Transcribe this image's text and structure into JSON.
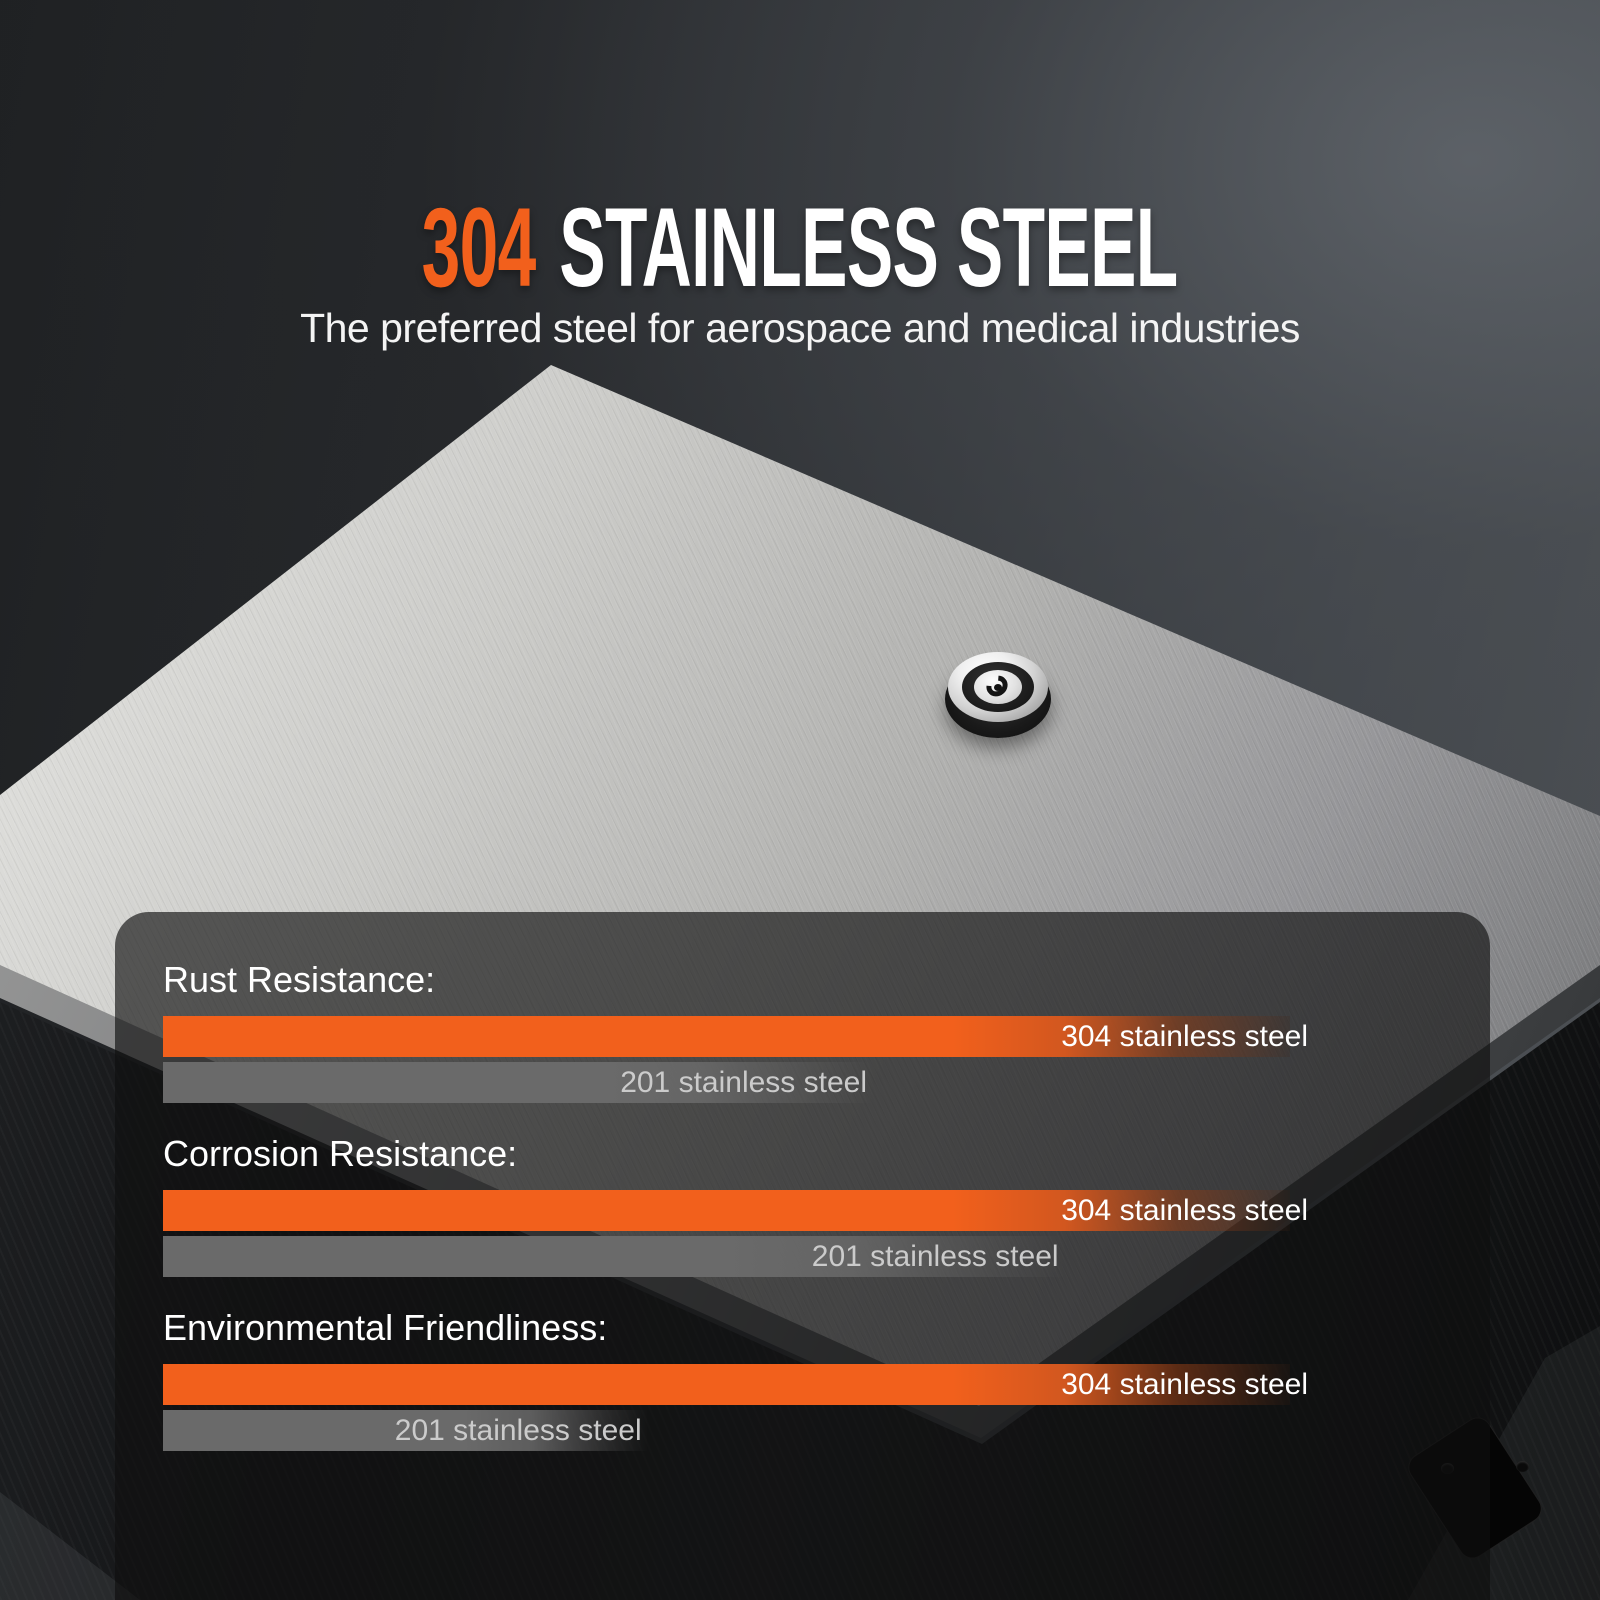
{
  "title": {
    "accent": "304",
    "main": "STAINLESS STEEL"
  },
  "subtitle": "The preferred steel for aerospace and medical industries",
  "sections": [
    {
      "label": "Rust Resistance:",
      "bars": [
        {
          "name": "304 stainless steel",
          "pct": 100
        },
        {
          "name": "201 stainless steel",
          "pct": 63
        }
      ]
    },
    {
      "label": "Corrosion Resistance:",
      "bars": [
        {
          "name": "304 stainless steel",
          "pct": 100
        },
        {
          "name": "201 stainless steel",
          "pct": 80
        }
      ]
    },
    {
      "label": "Environmental Friendliness:",
      "bars": [
        {
          "name": "304 stainless steel",
          "pct": 100
        },
        {
          "name": "201 stainless steel",
          "pct": 43
        }
      ]
    }
  ],
  "colors": {
    "accent_orange": "#F2601C",
    "bar_gray": "#6A6A6A",
    "panel_overlay": "rgba(15,15,16,0.65)",
    "title_white": "#FFFFFF"
  },
  "chart_data": {
    "type": "bar",
    "orientation": "horizontal",
    "title": "304 STAINLESS STEEL",
    "subtitle": "The preferred steel for aerospace and medical industries",
    "categories": [
      "Rust Resistance:",
      "Corrosion Resistance:",
      "Environmental Friendliness:"
    ],
    "series": [
      {
        "name": "304 stainless steel",
        "color": "#F2601C",
        "values_pct": [
          100,
          100,
          100
        ]
      },
      {
        "name": "201 stainless steel",
        "color": "#6A6A6A",
        "values_pct": [
          63,
          80,
          43
        ]
      }
    ],
    "axis": "none (qualitative length comparison, bars fade out at right end)",
    "legend_position": "labels printed on each bar",
    "background": "photo of brushed 304 stainless steel enclosure lid with lock cylinder"
  }
}
